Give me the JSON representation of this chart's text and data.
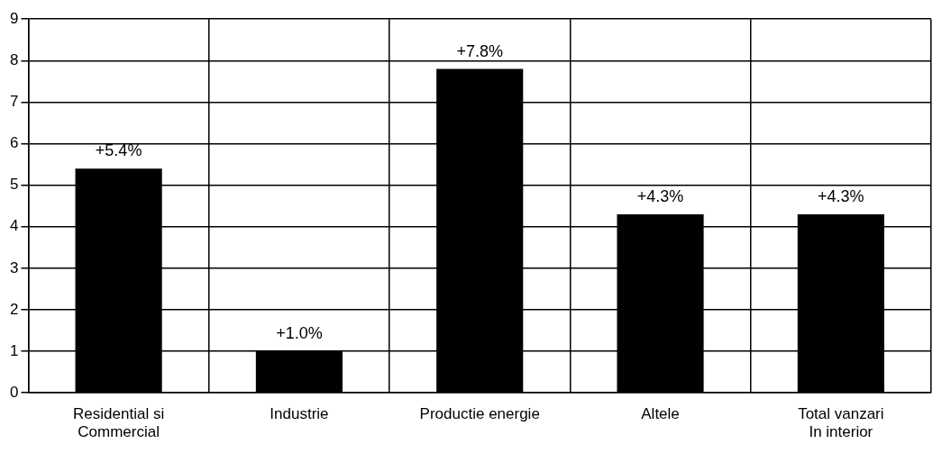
{
  "chart_data": {
    "type": "bar",
    "categories": [
      "Residential si\nCommercial",
      "Industrie",
      "Productie energie",
      "Altele",
      "Total vanzari\nIn interior"
    ],
    "values": [
      5.4,
      1.0,
      7.8,
      4.3,
      4.3
    ],
    "value_labels": [
      "+5.4%",
      "+1.0%",
      "+7.8%",
      "+4.3%",
      "+4.3%"
    ],
    "color": "#000000",
    "ylim": [
      0,
      9
    ],
    "yticks": [
      0,
      1,
      2,
      3,
      4,
      5,
      6,
      7,
      8,
      9
    ],
    "grid": true,
    "legend": false
  }
}
